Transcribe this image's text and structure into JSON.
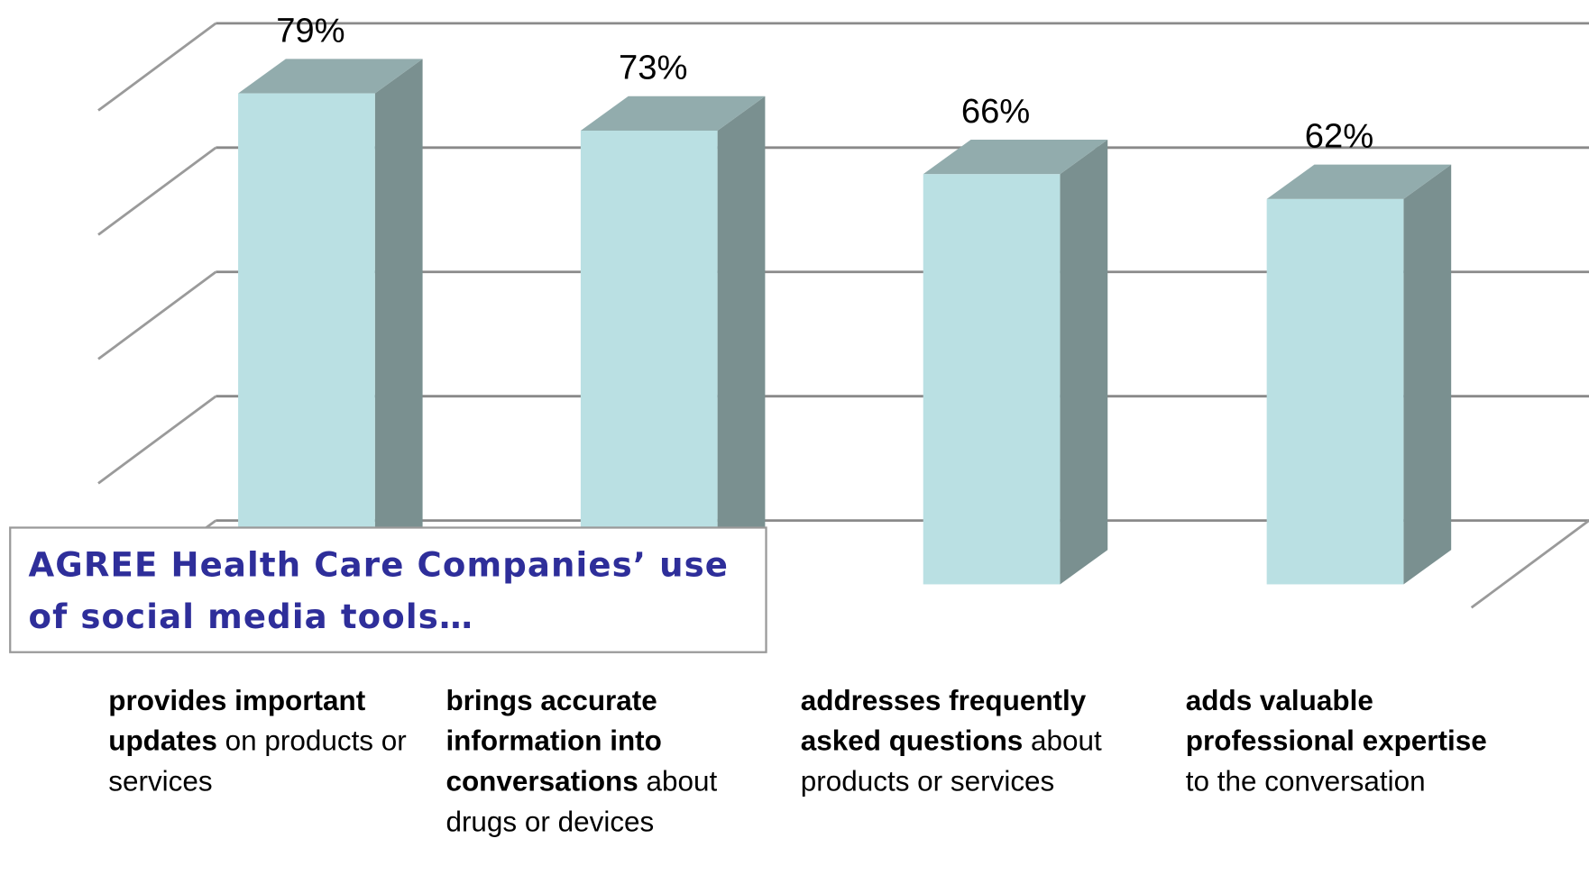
{
  "chart_data": {
    "type": "bar3d",
    "title": "AGREE Health Care Companies’ use of social media tools…",
    "categories": [
      {
        "emphasis": "provides important updates",
        "text": "on products or services"
      },
      {
        "emphasis": "brings accurate information into conversations",
        "text": "about drugs or devices"
      },
      {
        "emphasis": "addresses frequently asked questions",
        "text": "about products or services"
      },
      {
        "emphasis": "adds valuable professional expertise",
        "text": "to the conversation"
      }
    ],
    "values": [
      79,
      73,
      66,
      62
    ],
    "value_labels": [
      "79%",
      "73%",
      "66%",
      "62%"
    ],
    "colors": {
      "front": "#bae0e3",
      "side": "#7a9090",
      "top": "#92acad"
    },
    "ylim": [
      0,
      80
    ],
    "yticks": [
      0,
      20,
      40,
      60,
      80
    ],
    "grid": true
  }
}
